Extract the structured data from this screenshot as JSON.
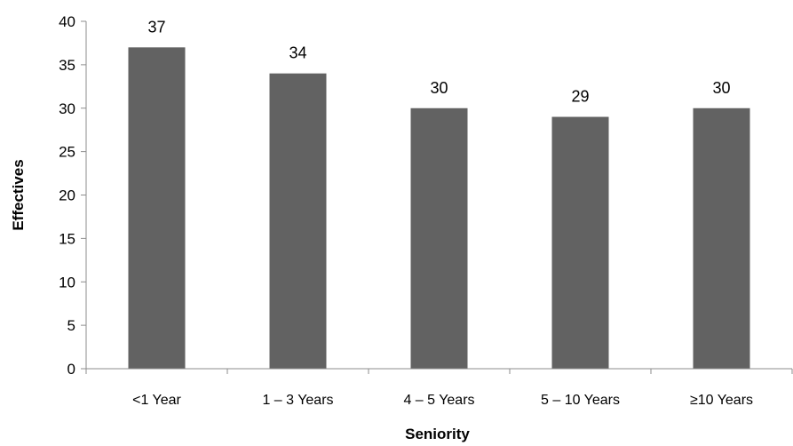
{
  "chart_data": {
    "type": "bar",
    "categories": [
      "<1 Year",
      "1 – 3 Years",
      "4 – 5 Years",
      "5 – 10 Years",
      "≥10 Years"
    ],
    "values": [
      37,
      34,
      30,
      29,
      30
    ],
    "data_labels": [
      "37",
      "34",
      "30",
      "29",
      "30"
    ],
    "title": "",
    "xlabel": "Seniority",
    "ylabel": "Effectives",
    "ylim": [
      0,
      40
    ],
    "yticks": [
      0,
      5,
      10,
      15,
      20,
      25,
      30,
      35,
      40
    ],
    "grid": false,
    "legend": "none",
    "bar_color": "#626262",
    "axis_color": "#8c8c8c"
  }
}
